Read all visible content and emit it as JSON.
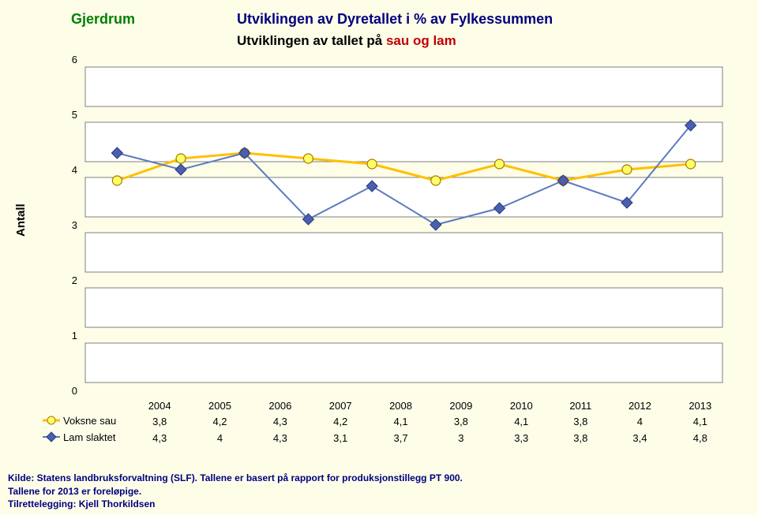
{
  "header": {
    "region": "Gjerdrum",
    "title_main": "Utviklingen av Dyretallet i % av Fylkessummen",
    "title_sub_prefix": "Utviklingen av tallet på ",
    "title_sub_highlight": "sau og lam",
    "title_fontsize": 18,
    "subtitle_fontsize": 17
  },
  "y_axis_label": "Antall",
  "chart": {
    "type": "line",
    "background_color": "#fdfde8",
    "plot_segment_fill": "#ffffff",
    "plot_segment_border": "#808080",
    "axis_font_size": 13,
    "ylim": [
      0,
      6
    ],
    "ytick_step": 1,
    "categories": [
      "2004",
      "2005",
      "2006",
      "2007",
      "2008",
      "2009",
      "2010",
      "2011",
      "2012",
      "2013"
    ],
    "series": [
      {
        "name": "Voksne sau",
        "values": [
          3.8,
          4.2,
          4.3,
          4.2,
          4.1,
          3.8,
          4.1,
          3.8,
          4.0,
          4.1
        ],
        "display": [
          "3,8",
          "4,2",
          "4,3",
          "4,2",
          "4,1",
          "3,8",
          "4,1",
          "3,8",
          "4",
          "4,1"
        ],
        "line_color": "#ffc000",
        "line_width": 3,
        "marker_shape": "circle",
        "marker_fill": "#ffff66",
        "marker_stroke": "#a87800",
        "marker_size": 6
      },
      {
        "name": "Lam slaktet",
        "values": [
          4.3,
          4.0,
          4.3,
          3.1,
          3.7,
          3.0,
          3.3,
          3.8,
          3.4,
          4.8
        ],
        "display": [
          "4,3",
          "4",
          "4,3",
          "3,1",
          "3,7",
          "3",
          "3,3",
          "3,8",
          "3,4",
          "4,8"
        ],
        "line_color": "#5b7bbf",
        "line_width": 2,
        "marker_shape": "diamond",
        "marker_fill": "#4b5fb0",
        "marker_stroke": "#2a3a80",
        "marker_size": 7
      }
    ]
  },
  "footer": {
    "line1": "Kilde:  Statens landbruksforvaltning (SLF).  Tallene er basert på rapport for produksjonstillegg PT 900.",
    "line2": "Tallene for 2013 er foreløpige.",
    "line3": "Tilrettelegging:  Kjell Thorkildsen",
    "font_size": 12,
    "color": "#000080"
  }
}
